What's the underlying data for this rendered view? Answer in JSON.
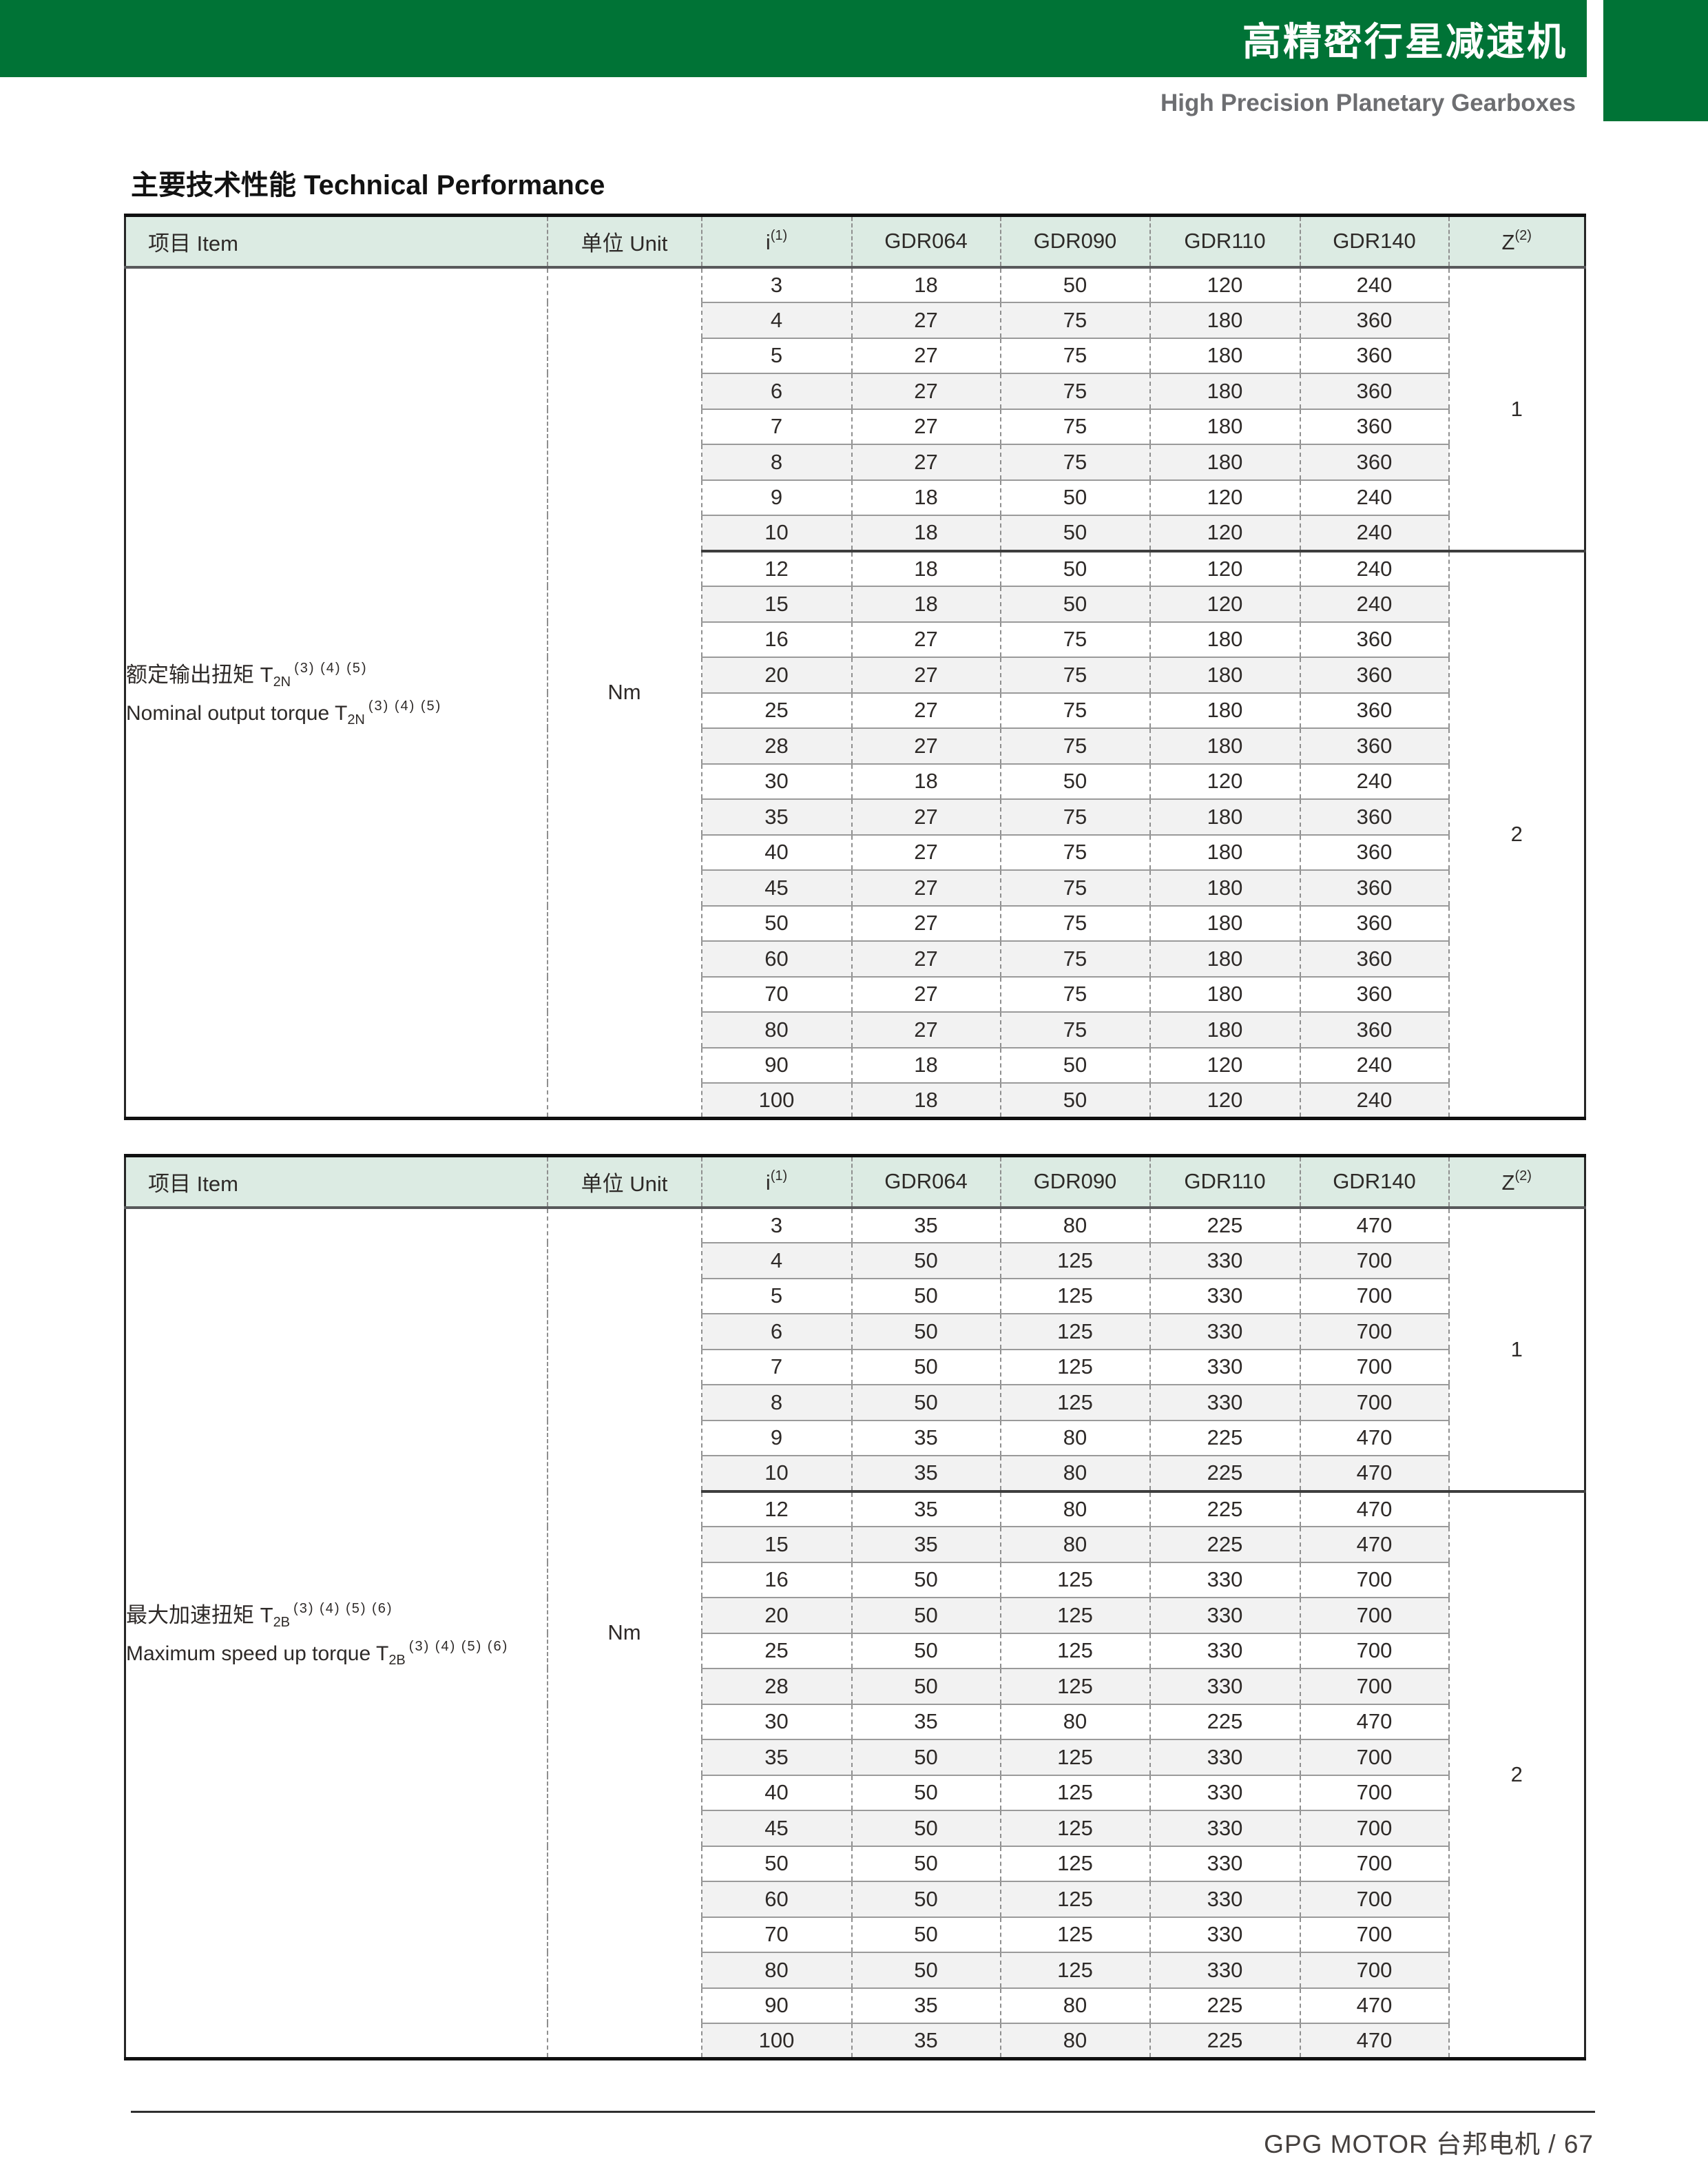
{
  "header": {
    "banner_title": "高精密行星减速机",
    "subtitle": "High Precision Planetary Gearboxes"
  },
  "section": {
    "title": "主要技术性能 Technical Performance"
  },
  "colors": {
    "brand_green": "#007336",
    "table_header_bg": "#dcebe3",
    "row_stripe": "#f2f2f2",
    "subtitle_gray": "#6d6e71"
  },
  "tables": [
    {
      "headers": {
        "item": "项目 Item",
        "unit": "单位 Unit",
        "i_label": "i",
        "i_sup": "(1)",
        "models": [
          "GDR064",
          "GDR090",
          "GDR110",
          "GDR140"
        ],
        "z_label": "Z",
        "z_sup": "(2)"
      },
      "item": {
        "zh": "额定输出扭矩 T",
        "en": "Nominal output torque T",
        "sub": "2N",
        "refs": "(3) (4) (5)"
      },
      "unit": "Nm",
      "rows": [
        [
          3,
          18,
          50,
          120,
          240
        ],
        [
          4,
          27,
          75,
          180,
          360
        ],
        [
          5,
          27,
          75,
          180,
          360
        ],
        [
          6,
          27,
          75,
          180,
          360
        ],
        [
          7,
          27,
          75,
          180,
          360
        ],
        [
          8,
          27,
          75,
          180,
          360
        ],
        [
          9,
          18,
          50,
          120,
          240
        ],
        [
          10,
          18,
          50,
          120,
          240
        ],
        [
          12,
          18,
          50,
          120,
          240
        ],
        [
          15,
          18,
          50,
          120,
          240
        ],
        [
          16,
          27,
          75,
          180,
          360
        ],
        [
          20,
          27,
          75,
          180,
          360
        ],
        [
          25,
          27,
          75,
          180,
          360
        ],
        [
          28,
          27,
          75,
          180,
          360
        ],
        [
          30,
          18,
          50,
          120,
          240
        ],
        [
          35,
          27,
          75,
          180,
          360
        ],
        [
          40,
          27,
          75,
          180,
          360
        ],
        [
          45,
          27,
          75,
          180,
          360
        ],
        [
          50,
          27,
          75,
          180,
          360
        ],
        [
          60,
          27,
          75,
          180,
          360
        ],
        [
          70,
          27,
          75,
          180,
          360
        ],
        [
          80,
          27,
          75,
          180,
          360
        ],
        [
          90,
          18,
          50,
          120,
          240
        ],
        [
          100,
          18,
          50,
          120,
          240
        ]
      ],
      "z_groups": [
        {
          "label": "1",
          "span": 8
        },
        {
          "label": "2",
          "span": 16
        }
      ]
    },
    {
      "headers": {
        "item": "项目 Item",
        "unit": "单位 Unit",
        "i_label": "i",
        "i_sup": "(1)",
        "models": [
          "GDR064",
          "GDR090",
          "GDR110",
          "GDR140"
        ],
        "z_label": "Z",
        "z_sup": "(2)"
      },
      "item": {
        "zh": "最大加速扭矩 T",
        "en": "Maximum speed up torque T",
        "sub": "2B",
        "refs": "(3) (4) (5) (6)"
      },
      "unit": "Nm",
      "rows": [
        [
          3,
          35,
          80,
          225,
          470
        ],
        [
          4,
          50,
          125,
          330,
          700
        ],
        [
          5,
          50,
          125,
          330,
          700
        ],
        [
          6,
          50,
          125,
          330,
          700
        ],
        [
          7,
          50,
          125,
          330,
          700
        ],
        [
          8,
          50,
          125,
          330,
          700
        ],
        [
          9,
          35,
          80,
          225,
          470
        ],
        [
          10,
          35,
          80,
          225,
          470
        ],
        [
          12,
          35,
          80,
          225,
          470
        ],
        [
          15,
          35,
          80,
          225,
          470
        ],
        [
          16,
          50,
          125,
          330,
          700
        ],
        [
          20,
          50,
          125,
          330,
          700
        ],
        [
          25,
          50,
          125,
          330,
          700
        ],
        [
          28,
          50,
          125,
          330,
          700
        ],
        [
          30,
          35,
          80,
          225,
          470
        ],
        [
          35,
          50,
          125,
          330,
          700
        ],
        [
          40,
          50,
          125,
          330,
          700
        ],
        [
          45,
          50,
          125,
          330,
          700
        ],
        [
          50,
          50,
          125,
          330,
          700
        ],
        [
          60,
          50,
          125,
          330,
          700
        ],
        [
          70,
          50,
          125,
          330,
          700
        ],
        [
          80,
          50,
          125,
          330,
          700
        ],
        [
          90,
          35,
          80,
          225,
          470
        ],
        [
          100,
          35,
          80,
          225,
          470
        ]
      ],
      "z_groups": [
        {
          "label": "1",
          "span": 8
        },
        {
          "label": "2",
          "span": 16
        }
      ]
    }
  ],
  "footer": {
    "text": "GPG MOTOR 台邦电机  /  67"
  }
}
